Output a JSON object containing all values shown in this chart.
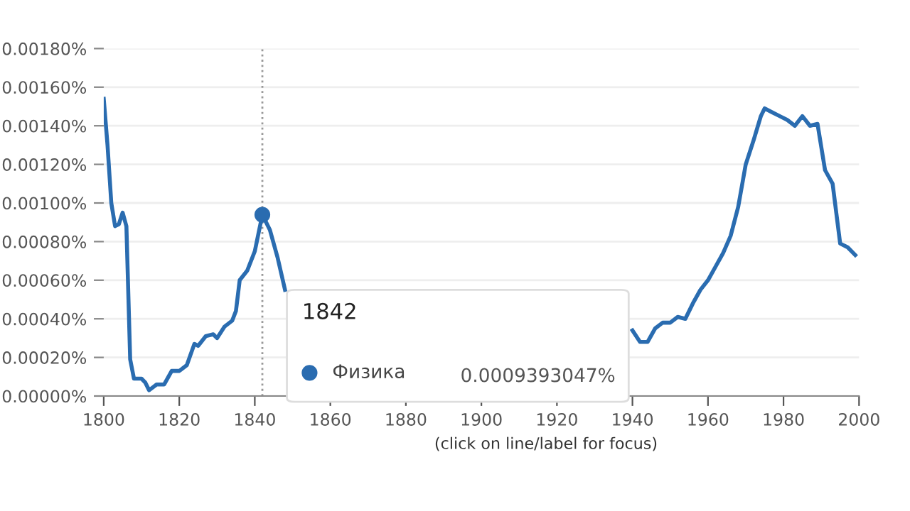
{
  "chart_data": {
    "type": "line",
    "x": [
      1800,
      1801,
      1802,
      1803,
      1804,
      1805,
      1806,
      1807,
      1808,
      1810,
      1811,
      1812,
      1814,
      1816,
      1818,
      1820,
      1822,
      1824,
      1825,
      1827,
      1829,
      1830,
      1832,
      1834,
      1835,
      1836,
      1838,
      1840,
      1842,
      1844,
      1846,
      1848,
      1849,
      1939,
      1940,
      1942,
      1944,
      1946,
      1948,
      1950,
      1952,
      1954,
      1956,
      1958,
      1960,
      1962,
      1964,
      1966,
      1968,
      1970,
      1972,
      1974,
      1975,
      1977,
      1979,
      1981,
      1983,
      1985,
      1987,
      1989,
      1991,
      1993,
      1995,
      1997,
      1999
    ],
    "series": [
      {
        "name": "Физика",
        "color": "#2a6cb0",
        "values": [
          0.00154,
          0.0013,
          0.001,
          0.00088,
          0.00089,
          0.00095,
          0.00088,
          0.00019,
          9e-05,
          9e-05,
          7e-05,
          3e-05,
          6e-05,
          6e-05,
          0.00013,
          0.00013,
          0.00016,
          0.00027,
          0.00026,
          0.00031,
          0.00032,
          0.0003,
          0.00036,
          0.00039,
          0.00044,
          0.0006,
          0.00065,
          0.00075,
          0.000939,
          0.00086,
          0.00072,
          0.00055,
          null,
          null,
          0.00034,
          0.00028,
          0.00028,
          0.00035,
          0.00038,
          0.00038,
          0.00041,
          0.0004,
          0.00048,
          0.00055,
          0.0006,
          0.00067,
          0.00074,
          0.00083,
          0.00098,
          0.0012,
          0.00132,
          0.00145,
          0.00149,
          0.00147,
          0.00145,
          0.00143,
          0.0014,
          0.00145,
          0.0014,
          0.00141,
          0.00117,
          0.0011,
          0.00079,
          0.00077,
          0.00073
        ]
      }
    ],
    "xlim": [
      1800,
      2000
    ],
    "xticks": [
      1800,
      1820,
      1840,
      1860,
      1880,
      1900,
      1920,
      1940,
      1960,
      1980,
      2000
    ],
    "ylim": [
      0,
      0.0018
    ],
    "yticks": [
      {
        "value": 0,
        "label": "0.00000%"
      },
      {
        "value": 0.0002,
        "label": "0.00020%"
      },
      {
        "value": 0.0004,
        "label": "0.00040%"
      },
      {
        "value": 0.0006,
        "label": "0.00060%"
      },
      {
        "value": 0.0008,
        "label": "0.00080%"
      },
      {
        "value": 0.001,
        "label": "0.00100%"
      },
      {
        "value": 0.0012,
        "label": "0.00120%"
      },
      {
        "value": 0.0014,
        "label": "0.00140%"
      },
      {
        "value": 0.0016,
        "label": "0.00160%"
      },
      {
        "value": 0.0018,
        "label": "0.00180%"
      }
    ],
    "grid": "y",
    "ref_lines": [
      {
        "axis": "x",
        "value": 1842,
        "label": "1842",
        "color": "#999999",
        "line_style": "dotted"
      }
    ],
    "annotations": [
      "0.0009393047%",
      "(click on line/label for focus)"
    ]
  }
}
